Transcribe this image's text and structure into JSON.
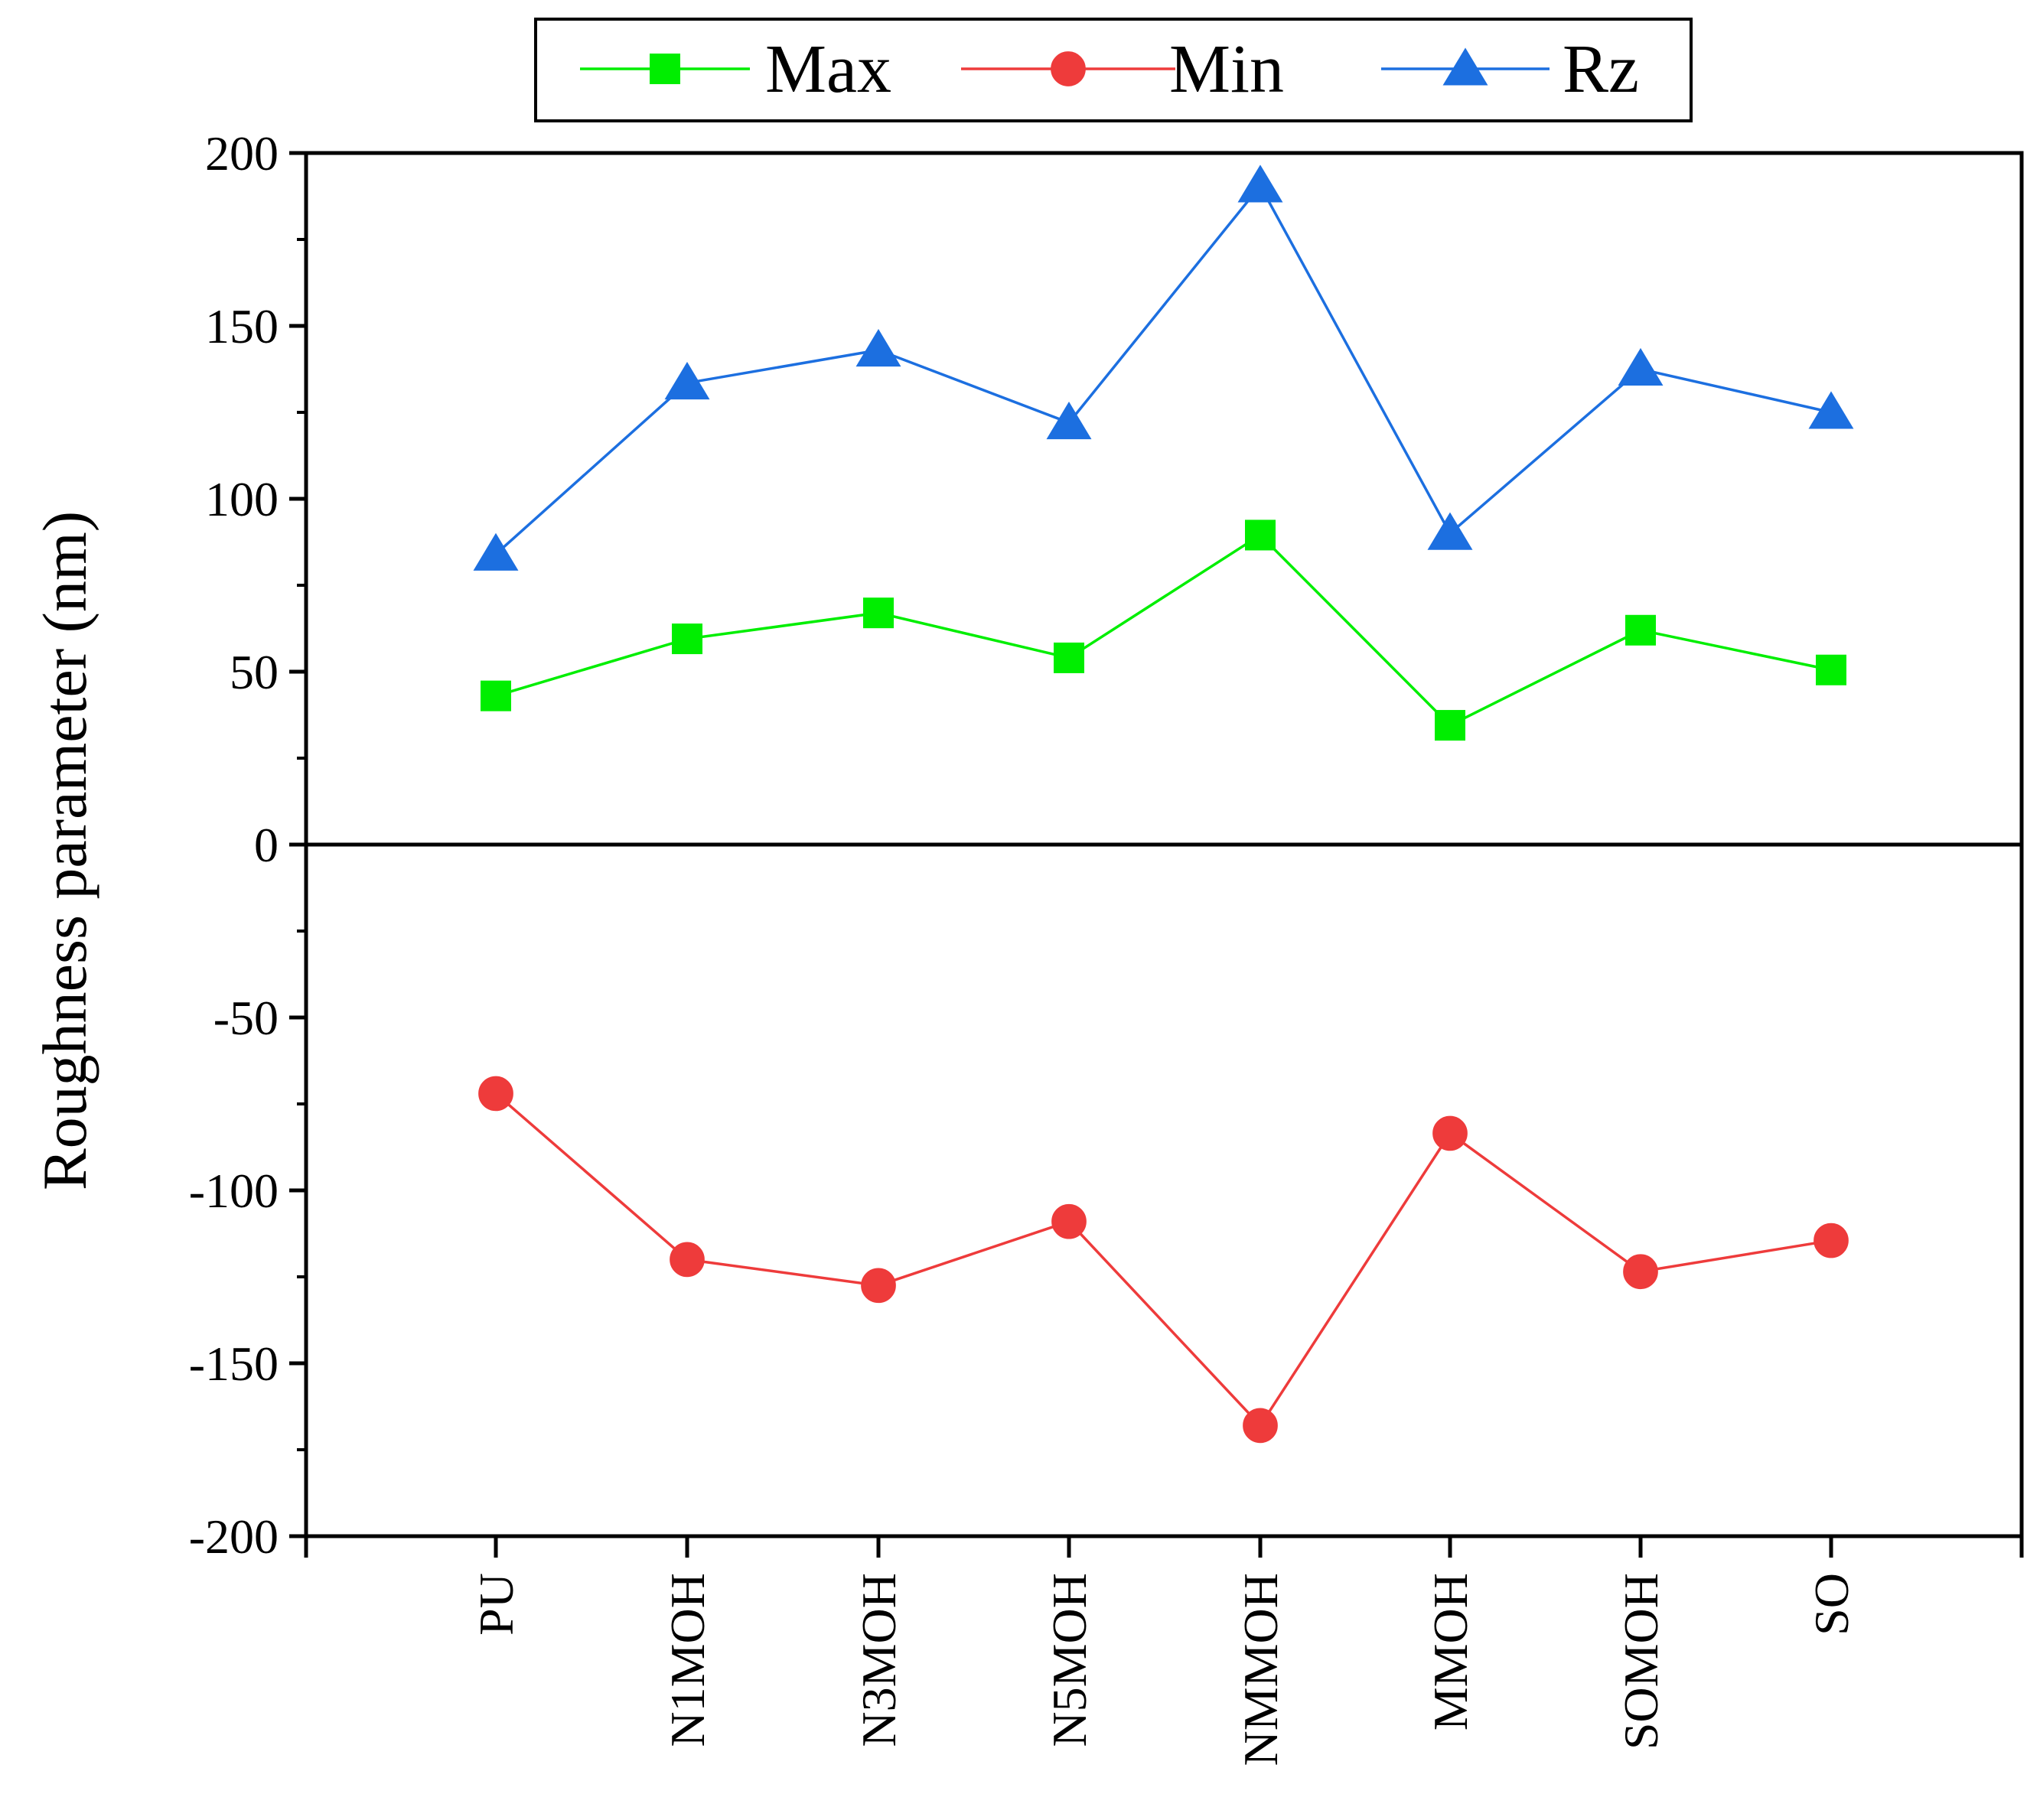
{
  "chart_data": {
    "type": "line",
    "title": "",
    "xlabel": "",
    "ylabel": "Roughness parameter (nm)",
    "categories": [
      "PU",
      "N1MOH",
      "N3MOH",
      "N5MOH",
      "NMMOH",
      "MMOH",
      "SOMOH",
      "SO"
    ],
    "ylim": [
      -200,
      200
    ],
    "yticks": [
      200,
      150,
      100,
      50,
      0,
      -50,
      -100,
      -150,
      -200
    ],
    "ytick_labels": [
      "200",
      "150",
      "100",
      "50",
      "0",
      "-50",
      "-100",
      "-150",
      "-200"
    ],
    "zero_line": true,
    "grid": false,
    "legend_position": "top-center",
    "series": [
      {
        "name": "Max",
        "marker": "square",
        "color": "#00ee00",
        "values": [
          43,
          59.5,
          67,
          54,
          89.5,
          34.5,
          62,
          50.5
        ]
      },
      {
        "name": "Min",
        "marker": "circle",
        "color": "#ee3b3b",
        "values": [
          -72,
          -120,
          -127.5,
          -109,
          -168,
          -83.5,
          -123.5,
          -114.5
        ]
      },
      {
        "name": "Rz",
        "marker": "triangle",
        "color": "#1c6fe0",
        "values": [
          84,
          133.5,
          143,
          122,
          190.5,
          90,
          137.5,
          125
        ]
      }
    ]
  }
}
